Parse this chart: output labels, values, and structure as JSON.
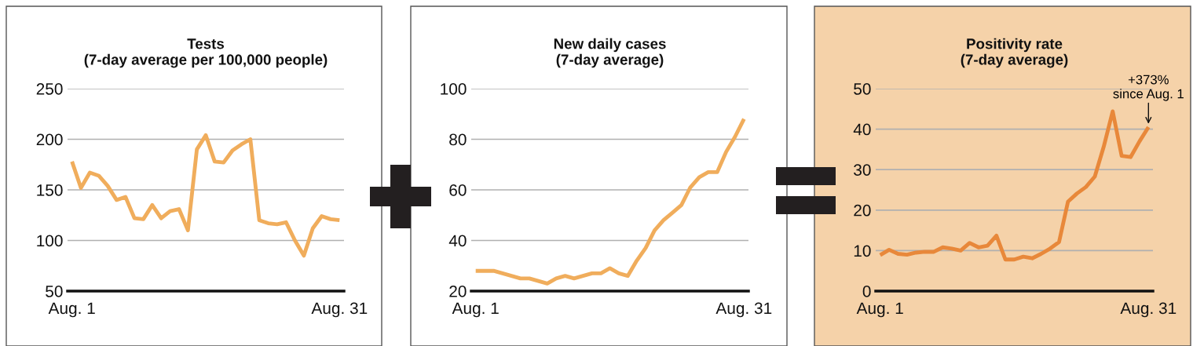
{
  "chart_data": [
    {
      "type": "line",
      "title": "Tests\n(7-day average per 100,000 people)",
      "categories": [
        "Aug. 1",
        null,
        null,
        null,
        null,
        null,
        null,
        null,
        null,
        null,
        null,
        null,
        null,
        null,
        null,
        null,
        null,
        null,
        null,
        null,
        null,
        null,
        null,
        null,
        null,
        null,
        null,
        null,
        null,
        null,
        "Aug. 31"
      ],
      "series": [
        {
          "color": "#f0ad5c",
          "values": [
            178,
            152,
            167,
            164,
            154,
            140,
            143,
            122,
            121,
            135,
            122,
            129,
            131,
            110,
            190,
            204,
            178,
            177,
            189,
            195,
            200,
            120,
            117,
            116,
            118,
            100,
            85,
            112,
            124,
            121,
            120
          ]
        }
      ],
      "ylim": [
        50,
        250
      ],
      "yticks": [
        50,
        100,
        150,
        200,
        250
      ],
      "grid": "y"
    },
    {
      "type": "line",
      "title": "New daily cases\n(7-day average)",
      "categories": [
        "Aug. 1",
        null,
        null,
        null,
        null,
        null,
        null,
        null,
        null,
        null,
        null,
        null,
        null,
        null,
        null,
        null,
        null,
        null,
        null,
        null,
        null,
        null,
        null,
        null,
        null,
        null,
        null,
        null,
        null,
        null,
        "Aug. 31"
      ],
      "series": [
        {
          "color": "#f0ad5c",
          "values": [
            28,
            28,
            28,
            27,
            26,
            25,
            25,
            24,
            23,
            25,
            26,
            25,
            26,
            27,
            27,
            29,
            27,
            26,
            32,
            37,
            44,
            48,
            51,
            54,
            61,
            65,
            67,
            67,
            75,
            81,
            88
          ]
        }
      ],
      "ylim": [
        20,
        100
      ],
      "yticks": [
        20,
        40,
        60,
        80,
        100
      ],
      "grid": "y"
    },
    {
      "type": "line",
      "title": "Positivity rate\n(7-day average)",
      "categories": [
        "Aug. 1",
        null,
        null,
        null,
        null,
        null,
        null,
        null,
        null,
        null,
        null,
        null,
        null,
        null,
        null,
        null,
        null,
        null,
        null,
        null,
        null,
        null,
        null,
        null,
        null,
        null,
        null,
        null,
        null,
        null,
        "Aug. 31"
      ],
      "series": [
        {
          "color": "#e8883a",
          "values": [
            8.9,
            10.2,
            9.2,
            9.0,
            9.5,
            9.7,
            9.7,
            10.8,
            10.5,
            10.0,
            11.9,
            10.8,
            11.2,
            13.7,
            7.8,
            7.8,
            8.5,
            8.1,
            9.2,
            10.5,
            12.1,
            22.1,
            24.1,
            25.7,
            28.3,
            35.7,
            44.4,
            33.4,
            33.1,
            37.0,
            40.5
          ]
        }
      ],
      "ylim": [
        0,
        50
      ],
      "yticks": [
        0,
        10,
        20,
        30,
        40,
        50
      ],
      "grid": "y",
      "annotations": [
        {
          "text": "+373%\nsince Aug. 1",
          "x": "Aug. 31",
          "y": 40.5
        }
      ]
    }
  ]
}
